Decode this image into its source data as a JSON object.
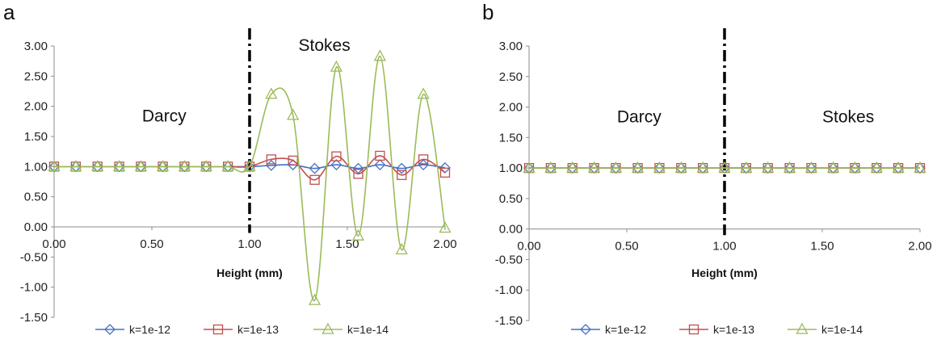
{
  "colors": {
    "k12": "#4472C4",
    "k13": "#C0504D",
    "k14": "#9BBB59"
  },
  "chart_data": [
    {
      "panel": "a",
      "type": "line",
      "xlabel": "Height (mm)",
      "ylabel": "",
      "xlim": [
        0,
        2
      ],
      "ylim": [
        -1.5,
        3
      ],
      "xticks": [
        "0.00",
        "0.50",
        "1.00",
        "1.50",
        "2.00"
      ],
      "yticks": [
        "3.00",
        "2.50",
        "2.00",
        "1.50",
        "1.00",
        "0.50",
        "0.00",
        "-0.50",
        "-1.00",
        "-1.50"
      ],
      "divider_x": 1.0,
      "regions": [
        {
          "label": "Darcy",
          "x": 0.45,
          "y": 1.75
        },
        {
          "label": "Stokes",
          "x": 1.25,
          "y": 2.92
        }
      ],
      "legend_position": "bottom",
      "x": [
        0,
        0.111,
        0.222,
        0.333,
        0.444,
        0.556,
        0.667,
        0.778,
        0.889,
        1.0,
        1.111,
        1.222,
        1.333,
        1.444,
        1.556,
        1.667,
        1.778,
        1.889,
        2.0
      ],
      "series": [
        {
          "name": "k=1e-12",
          "marker": "diamond",
          "color_key": "k12",
          "values": [
            1,
            1,
            1,
            1,
            1,
            1,
            1,
            1,
            1,
            1,
            1.02,
            1.03,
            0.97,
            1.03,
            0.97,
            1.03,
            0.97,
            1.03,
            0.98
          ]
        },
        {
          "name": "k=1e-13",
          "marker": "square",
          "color_key": "k13",
          "values": [
            1,
            1,
            1,
            1,
            1,
            1,
            1,
            1,
            1,
            1,
            1.12,
            1.1,
            0.78,
            1.17,
            0.88,
            1.18,
            0.86,
            1.12,
            0.9
          ]
        },
        {
          "name": "k=1e-14",
          "marker": "triangle",
          "color_key": "k14",
          "values": [
            1,
            1,
            1,
            1,
            1,
            1,
            1,
            1,
            1,
            1,
            2.2,
            1.85,
            -1.22,
            2.65,
            -0.15,
            2.83,
            -0.38,
            2.2,
            -0.02
          ]
        }
      ]
    },
    {
      "panel": "b",
      "type": "line",
      "xlabel": "Height (mm)",
      "ylabel": "",
      "xlim": [
        0,
        2
      ],
      "ylim": [
        -1.5,
        3
      ],
      "xticks": [
        "0.00",
        "0.50",
        "1.00",
        "1.50",
        "2.00"
      ],
      "yticks": [
        "3.00",
        "2.50",
        "2.00",
        "1.50",
        "1.00",
        "0.50",
        "0.00",
        "-0.50",
        "-1.00",
        "-1.50"
      ],
      "divider_x": 1.0,
      "regions": [
        {
          "label": "Darcy",
          "x": 0.45,
          "y": 1.75
        },
        {
          "label": "Stokes",
          "x": 1.5,
          "y": 1.75
        }
      ],
      "legend_position": "bottom",
      "x": [
        0,
        0.111,
        0.222,
        0.333,
        0.444,
        0.556,
        0.667,
        0.778,
        0.889,
        1.0,
        1.111,
        1.222,
        1.333,
        1.444,
        1.556,
        1.667,
        1.778,
        1.889,
        2.0
      ],
      "series": [
        {
          "name": "k=1e-12",
          "marker": "diamond",
          "color_key": "k12",
          "values": [
            1,
            1,
            1,
            1,
            1,
            1,
            1,
            1,
            1,
            1,
            1,
            1,
            1,
            1,
            1,
            1,
            1,
            1,
            1
          ]
        },
        {
          "name": "k=1e-13",
          "marker": "square",
          "color_key": "k13",
          "values": [
            1,
            1,
            1,
            1,
            1,
            1,
            1,
            1,
            1,
            1,
            1,
            1,
            1,
            1,
            1,
            1,
            1,
            1,
            1
          ]
        },
        {
          "name": "k=1e-14",
          "marker": "triangle",
          "color_key": "k14",
          "values": [
            1,
            1,
            1,
            1,
            1,
            1,
            1,
            1,
            1,
            1,
            1,
            1,
            1,
            1,
            1,
            1,
            1,
            1,
            1
          ]
        }
      ]
    }
  ]
}
